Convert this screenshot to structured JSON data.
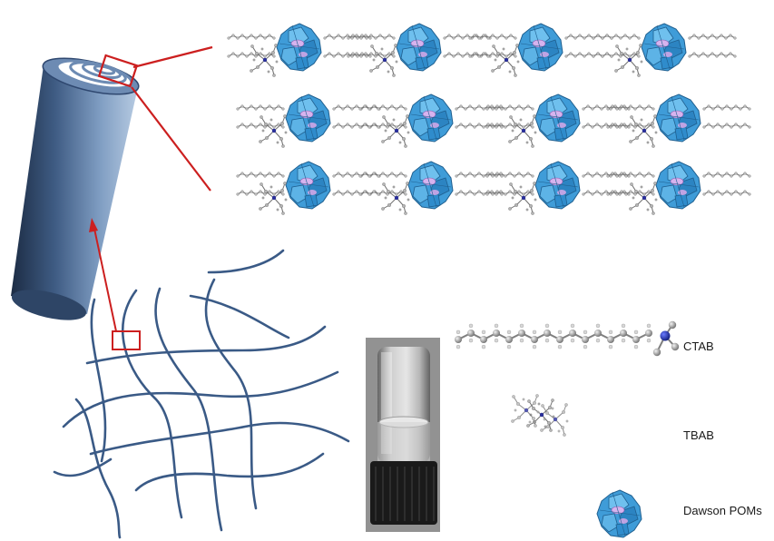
{
  "legend": {
    "ctab": "CTAB",
    "tbab": "TBAB",
    "dawson": "Dawson POMs"
  },
  "colors": {
    "fiber": "#3a5a86",
    "cylinder_dark": "#2a3e5a",
    "cylinder_light": "#a8c1dd",
    "highlight": "#cc1f1f",
    "pom_blue": "#3d9ad6",
    "pom_pink": "#cfa7e8",
    "atom_grey": "#8c8c8c",
    "nitrogen": "#1f2fb0"
  },
  "icons": [
    "fiber-network",
    "nanofiber-cylinder",
    "gel-vial-photo",
    "crystal-packing",
    "ctab-molecule",
    "tbab-molecule",
    "dawson-pom-icon"
  ]
}
